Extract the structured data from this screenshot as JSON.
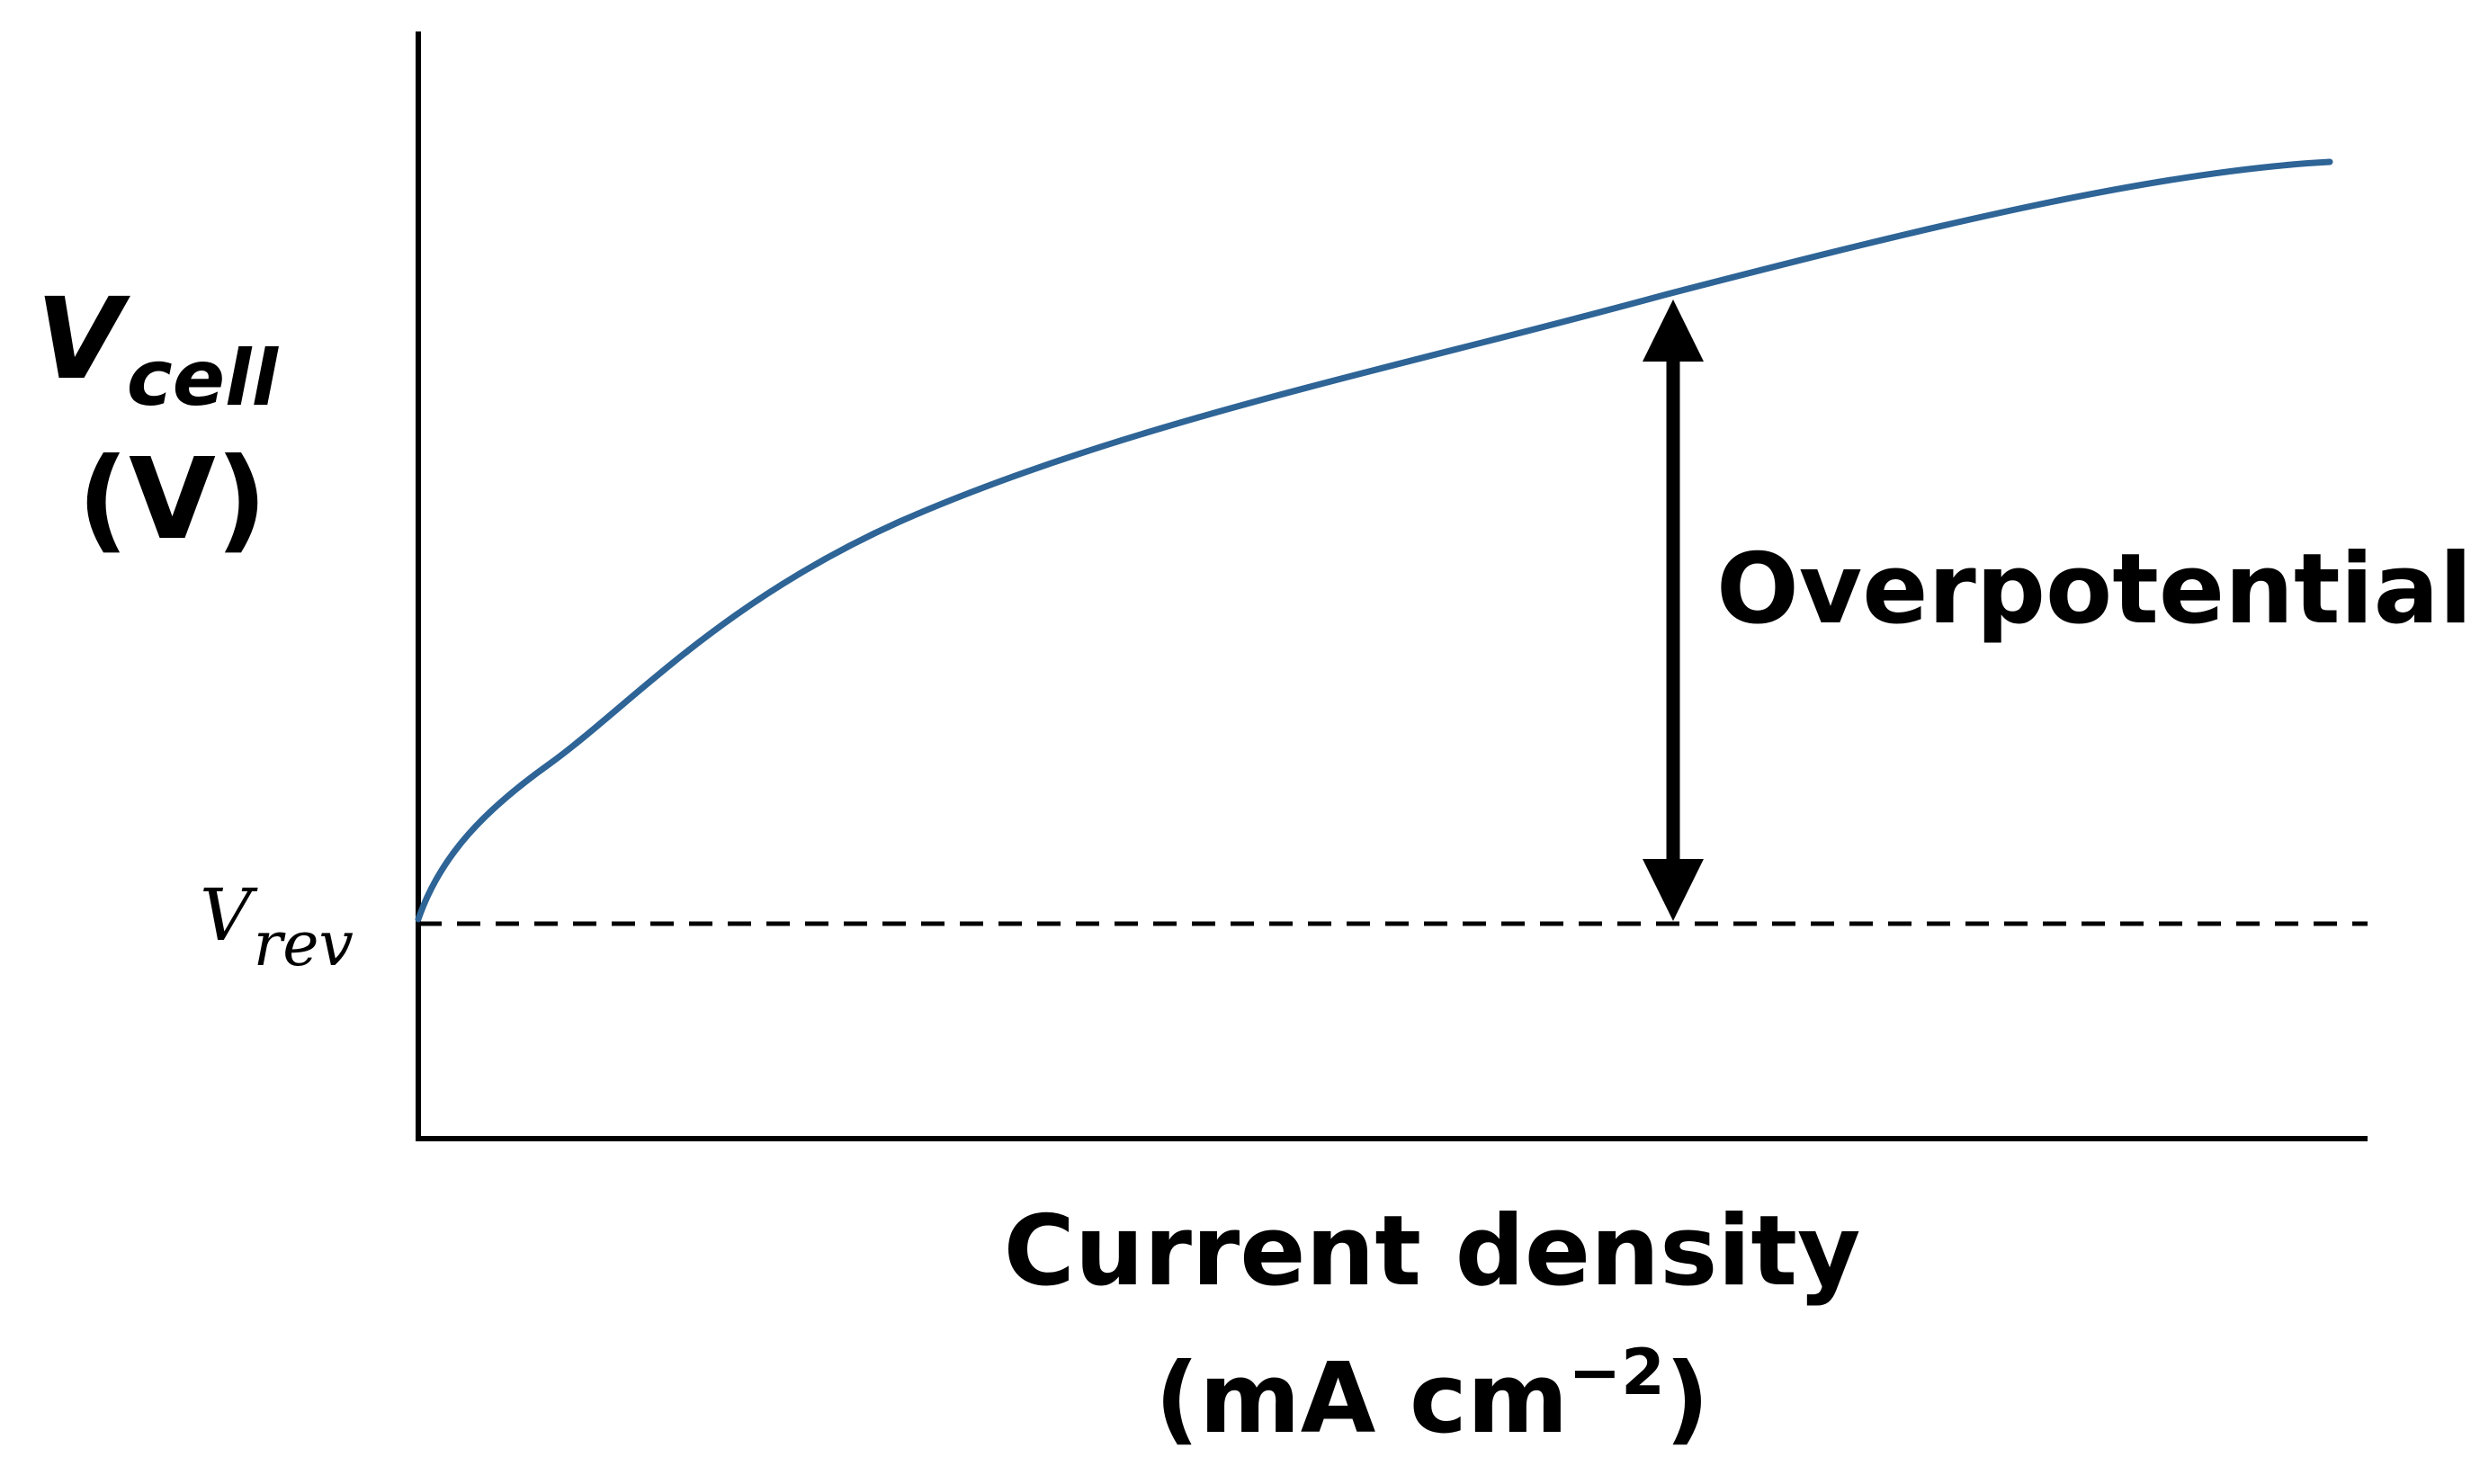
{
  "chart_data": {
    "type": "line",
    "y_label_symbol": "V",
    "y_label_subscript": "cell",
    "y_label_unit": "(V)",
    "x_label": "Current density",
    "x_unit_prefix": "(mA cm",
    "x_unit_exponent": "−2",
    "x_unit_suffix": ")",
    "reference_symbol": "V",
    "reference_subscript": "rev",
    "annotation": "Overpotential",
    "colors": {
      "curve": "#2e6496",
      "axes": "#000000"
    }
  }
}
